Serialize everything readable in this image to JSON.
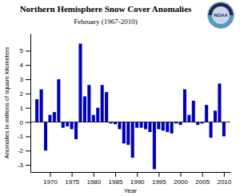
{
  "chart_data": {
    "type": "bar",
    "title": "Northern Hemisphere Snow Cover Anomalies",
    "subtitle": "February (1967-2010)",
    "xlabel": "Year",
    "ylabel": "Anomalies in millions of square kilometers",
    "annotations": [
      "NOAA"
    ],
    "x": [
      1967,
      1968,
      1969,
      1970,
      1971,
      1972,
      1973,
      1974,
      1975,
      1976,
      1977,
      1978,
      1979,
      1980,
      1981,
      1982,
      1983,
      1984,
      1985,
      1986,
      1987,
      1988,
      1989,
      1990,
      1991,
      1992,
      1993,
      1994,
      1995,
      1996,
      1997,
      1998,
      1999,
      2000,
      2001,
      2002,
      2003,
      2004,
      2005,
      2006,
      2007,
      2008,
      2009,
      2010
    ],
    "values": [
      1.6,
      2.3,
      -2.0,
      0.5,
      0.7,
      3.0,
      -0.4,
      -0.3,
      -0.5,
      -1.2,
      5.5,
      1.8,
      2.6,
      0.5,
      1.0,
      2.6,
      2.1,
      -0.1,
      -0.15,
      -0.5,
      -1.5,
      -1.6,
      -2.5,
      -0.4,
      -0.4,
      -0.5,
      -0.7,
      -3.3,
      -0.5,
      -0.6,
      -0.7,
      -0.8,
      -0.1,
      -0.2,
      2.3,
      0.5,
      1.5,
      -0.2,
      -0.1,
      1.2,
      -1.1,
      0.8,
      2.7,
      -1.0
    ],
    "color": "#0000bb",
    "xlim": [
      1965.5,
      2011.5
    ],
    "xticks": [
      1970,
      1975,
      1980,
      1985,
      1990,
      1995,
      2000,
      2005,
      2010
    ],
    "ylim": [
      -3.5,
      6.2
    ],
    "yticks": [
      -3,
      -2,
      -1,
      0,
      1,
      2,
      3,
      4,
      5
    ]
  }
}
